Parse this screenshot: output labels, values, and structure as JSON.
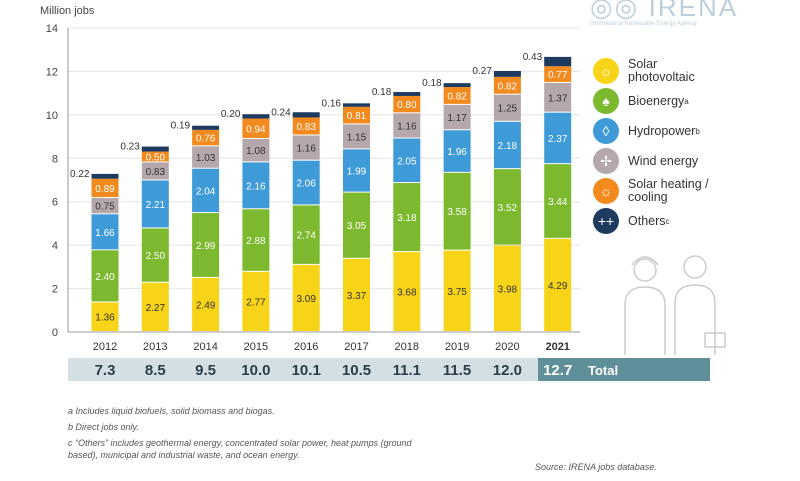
{
  "chart_data": {
    "type": "bar",
    "stacked": true,
    "ylabel": "Million jobs",
    "ylim": [
      0,
      14
    ],
    "yticks": [
      0,
      2,
      4,
      6,
      8,
      10,
      12,
      14
    ],
    "categories": [
      "2012",
      "2013",
      "2014",
      "2015",
      "2016",
      "2017",
      "2018",
      "2019",
      "2020",
      "2021"
    ],
    "series": [
      {
        "name": "Solar photovoltaic",
        "color": "#f7d417",
        "label_color": "#333",
        "values": [
          1.36,
          2.27,
          2.49,
          2.77,
          3.09,
          3.37,
          3.68,
          3.75,
          3.98,
          4.29
        ]
      },
      {
        "name": "Bioenergy",
        "sup": "a",
        "color": "#7cb92e",
        "label_color": "#fff",
        "values": [
          2.4,
          2.5,
          2.99,
          2.88,
          2.74,
          3.05,
          3.18,
          3.58,
          3.52,
          3.44
        ]
      },
      {
        "name": "Hydropower",
        "sup": "b",
        "color": "#3f9bd8",
        "label_color": "#fff",
        "values": [
          1.66,
          2.21,
          2.04,
          2.16,
          2.06,
          1.99,
          2.05,
          1.96,
          2.18,
          2.37
        ]
      },
      {
        "name": "Wind energy",
        "color": "#b5a8ab",
        "label_color": "#333",
        "values": [
          0.75,
          0.83,
          1.03,
          1.08,
          1.16,
          1.15,
          1.16,
          1.17,
          1.25,
          1.37
        ]
      },
      {
        "name": "Solar heating / cooling",
        "color": "#f28a1e",
        "label_color": "#fff",
        "values": [
          0.89,
          0.5,
          0.76,
          0.94,
          0.83,
          0.81,
          0.8,
          0.82,
          0.82,
          0.77
        ]
      },
      {
        "name": "Others",
        "sup": "c",
        "color": "#1e3a5f",
        "label_color": "#333",
        "values": [
          0.22,
          0.23,
          0.19,
          0.2,
          0.24,
          0.16,
          0.18,
          0.18,
          0.27,
          0.43
        ]
      }
    ],
    "totals": [
      "7.3",
      "8.5",
      "9.5",
      "10.0",
      "10.1",
      "10.5",
      "11.1",
      "11.5",
      "12.0",
      "12.7"
    ],
    "total_label": "Total"
  },
  "legend": [
    {
      "label": "Solar photovoltaic",
      "sup": ""
    },
    {
      "label": "Bioenergy",
      "sup": "a"
    },
    {
      "label": "Hydropower",
      "sup": "b"
    },
    {
      "label": "Wind energy",
      "sup": ""
    },
    {
      "label": "Solar heating / cooling",
      "sup": ""
    },
    {
      "label": "Others",
      "sup": "c"
    }
  ],
  "logo": {
    "name": "IRENA",
    "subtitle": "International Renewable Energy Agency"
  },
  "notes": [
    "a  Includes liquid biofuels, solid biomass and biogas.",
    "b  Direct jobs only.",
    "c  “Others” includes geothermal energy, concentrated solar power, heat pumps (ground based), municipal and industrial waste, and ocean energy."
  ],
  "source": "Source: IRENA jobs database."
}
